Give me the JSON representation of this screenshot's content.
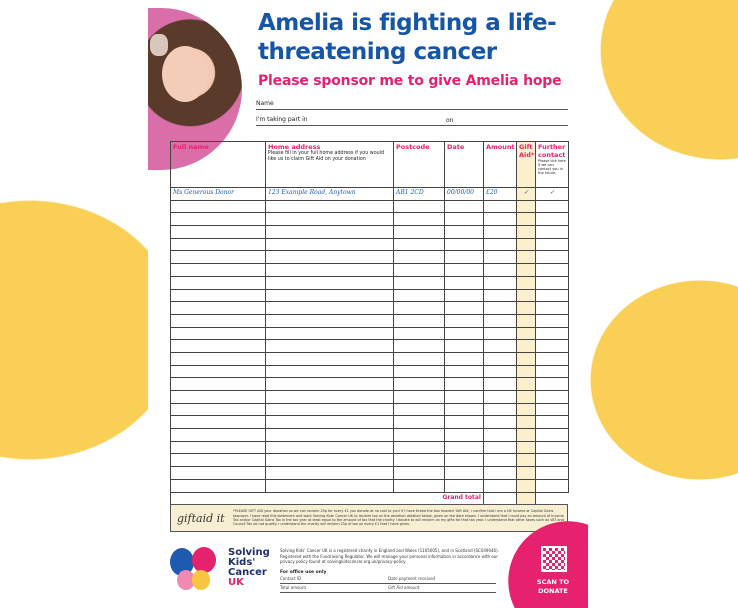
{
  "header": {
    "title": "Amelia is fighting a life-threatening cancer",
    "subtitle": "Please sponsor me to give Amelia hope"
  },
  "fields": {
    "name_label": "Name",
    "taking_part_label": "I'm taking part in",
    "on_label": "on"
  },
  "table": {
    "columns": [
      {
        "label": "Full name",
        "note": ""
      },
      {
        "label": "Home address",
        "note": "Please fill in your full home address if you would like us to claim Gift Aid on your donation"
      },
      {
        "label": "Postcode",
        "note": ""
      },
      {
        "label": "Date",
        "note": ""
      },
      {
        "label": "Amount",
        "note": ""
      },
      {
        "label": "Gift Aid*",
        "note": ""
      },
      {
        "label": "Further contact",
        "note": "Please tick here if we can contact you in the future"
      }
    ],
    "example_row": {
      "name": "Ms Generous Donor",
      "address": "123 Example Road, Anytown",
      "postcode": "AB1 2CD",
      "date": "00/00/00",
      "amount": "£20",
      "gift_aid": "✓",
      "contact": "✓"
    },
    "grand_total_label": "Grand total",
    "gift_aid_column_color": "#fcefcc"
  },
  "giftaid": {
    "logo": "giftaid it",
    "text": "*PLEASE GIFT AID your donation so we can reclaim 25p for every £1 you donate at no cost to you! If I have ticked the box headed 'Gift Aid', I confirm that I am a UK Income or Capital Gains taxpayer. I have read this statement and want Solving Kids' Cancer UK to reclaim tax on the donation detailed below, given on the date shown. I understand that I must pay an amount of Income Tax and/or Capital Gains Tax in the tax year at least equal to the amount of tax that the charity I donate to will reclaim on my gifts for that tax year. I understand that other taxes such as VAT and Council Tax do not qualify. I understand the charity will reclaim 25p of tax on every £1 that I have given."
  },
  "footer": {
    "brand_lines": [
      "Solving",
      "Kids'",
      "Cancer"
    ],
    "brand_uk": "UK",
    "charity_text": "Solving Kids' Cancer UK is a registered charity in England and Wales (1105605), and in Scotland (SC049046). Registered with the Fundraising Regulator. We will manage your personal information in accordance with our privacy policy found at solvingkidscancer.org.uk/privacy-policy",
    "office_label": "For office use only",
    "office_fields": [
      "Contact ID",
      "Date payment received",
      "Total amount",
      "Gift Aid amount"
    ],
    "scan_label": "SCAN TO DONATE"
  },
  "colors": {
    "background": "#f8c73c",
    "title_blue": "#1755a6",
    "accent_pink": "#e6226f"
  }
}
